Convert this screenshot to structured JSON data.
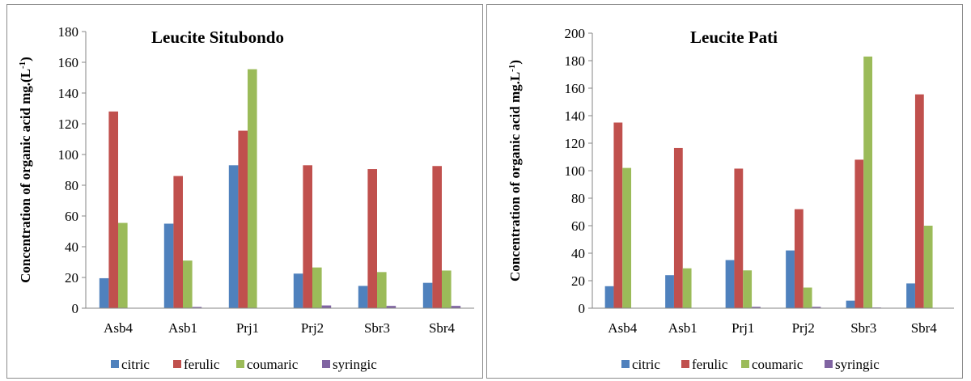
{
  "chart_data": [
    {
      "type": "bar",
      "title": "Leucite Situbondo",
      "ylabel": "Concentration of organic acid mg.(L",
      "ylabel_sup": "-1",
      "ylabel_suffix": ")",
      "ylim": [
        0,
        180
      ],
      "yticks": [
        0,
        20,
        40,
        60,
        80,
        100,
        120,
        140,
        160,
        180
      ],
      "categories": [
        "Asb4",
        "Asb1",
        "Prj1",
        "Prj2",
        "Sbr3",
        "Sbr4"
      ],
      "legend_position": "bottom",
      "series": [
        {
          "name": "citric",
          "color": "#4f81bd",
          "values": [
            19.5,
            55,
            93,
            22.5,
            14.5,
            16.5
          ]
        },
        {
          "name": "ferulic",
          "color": "#c0504d",
          "values": [
            128,
            86,
            115.5,
            93,
            90.5,
            92.5
          ]
        },
        {
          "name": "coumaric",
          "color": "#9bbb59",
          "values": [
            55.5,
            31,
            155.5,
            26.5,
            23.5,
            24.5
          ]
        },
        {
          "name": "syringic",
          "color": "#8064a2",
          "values": [
            0,
            0.8,
            0,
            1.8,
            1.5,
            1.5
          ]
        }
      ]
    },
    {
      "type": "bar",
      "title": "Leucite Pati",
      "ylabel": "Concentration of organic acid mg.L",
      "ylabel_sup": "-1",
      "ylabel_suffix": ")",
      "ylim": [
        0,
        200
      ],
      "yticks": [
        0,
        20,
        40,
        60,
        80,
        100,
        120,
        140,
        160,
        180,
        200
      ],
      "categories": [
        "Asb4",
        "Asb1",
        "Prj1",
        "Prj2",
        "Sbr3",
        "Sbr4"
      ],
      "legend_position": "bottom",
      "series": [
        {
          "name": "citric",
          "color": "#4f81bd",
          "values": [
            16,
            24,
            35,
            42,
            5.5,
            18
          ]
        },
        {
          "name": "ferulic",
          "color": "#c0504d",
          "values": [
            135,
            116.5,
            101.5,
            72,
            108,
            155.5
          ]
        },
        {
          "name": "coumaric",
          "color": "#9bbb59",
          "values": [
            102,
            29,
            27.5,
            15,
            183,
            60
          ]
        },
        {
          "name": "syringic",
          "color": "#8064a2",
          "values": [
            0,
            0,
            1,
            1,
            0.5,
            0
          ]
        }
      ]
    }
  ]
}
